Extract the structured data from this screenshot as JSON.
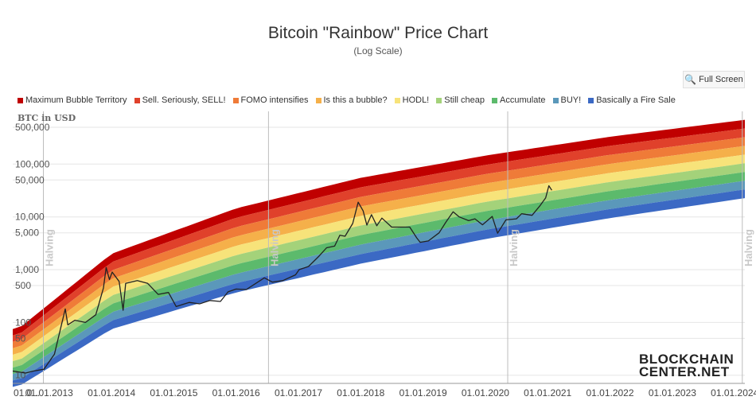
{
  "title": "Bitcoin \"Rainbow\" Price Chart",
  "subtitle": "(Log Scale)",
  "fullscreen_label": "Full Screen",
  "logo": {
    "line1": "BLOCKCHAIN",
    "line2": "CENTER.NET"
  },
  "chart_data": {
    "type": "area",
    "title": "Bitcoin \"Rainbow\" Price Chart",
    "subtitle": "(Log Scale)",
    "ylabel": "BTC in USD",
    "y_scale": "log",
    "ylim": [
      7,
      1000000
    ],
    "xlim": [
      "2012-06-01",
      "2024-03-01"
    ],
    "y_ticks": [
      {
        "value": 500000,
        "label": "500,000"
      },
      {
        "value": 100000,
        "label": "100,000"
      },
      {
        "value": 50000,
        "label": "50,000"
      },
      {
        "value": 10000,
        "label": "10,000"
      },
      {
        "value": 5000,
        "label": "5,000"
      },
      {
        "value": 1000,
        "label": "1,000"
      },
      {
        "value": 500,
        "label": "500"
      },
      {
        "value": 100,
        "label": "100"
      },
      {
        "value": 50,
        "label": "50"
      },
      {
        "value": 10,
        "label": "10"
      }
    ],
    "x_ticks": [
      {
        "date": "2012-07-01",
        "label": "01.0..."
      },
      {
        "date": "2013-01-01",
        "label": "01.01.2013"
      },
      {
        "date": "2014-01-01",
        "label": "01.01.2014"
      },
      {
        "date": "2015-01-01",
        "label": "01.01.2015"
      },
      {
        "date": "2016-01-01",
        "label": "01.01.2016"
      },
      {
        "date": "2017-01-01",
        "label": "01.01.2017"
      },
      {
        "date": "2018-01-01",
        "label": "01.01.2018"
      },
      {
        "date": "2019-01-01",
        "label": "01.01.2019"
      },
      {
        "date": "2020-01-01",
        "label": "01.01.2020"
      },
      {
        "date": "2021-01-01",
        "label": "01.01.2021"
      },
      {
        "date": "2022-01-01",
        "label": "01.01.2022"
      },
      {
        "date": "2023-01-01",
        "label": "01.01.2023"
      },
      {
        "date": "2024-01-01",
        "label": "01.01.2024"
      }
    ],
    "halvings": [
      {
        "date": "2012-11-28",
        "label": "Halving"
      },
      {
        "date": "2016-07-09",
        "label": "Halving"
      },
      {
        "date": "2020-05-11",
        "label": "Halving"
      },
      {
        "date": "2024-02-15",
        "label": "Halving"
      }
    ],
    "bands": [
      {
        "name": "Maximum Bubble Territory",
        "color": "#c00000",
        "lower": [
          [
            2012.5,
            40
          ],
          [
            2014.0,
            1100
          ],
          [
            2016.0,
            8000
          ],
          [
            2018.0,
            30000
          ],
          [
            2020.0,
            80000
          ],
          [
            2022.0,
            180000
          ],
          [
            2024.2,
            380000
          ]
        ],
        "upper": [
          [
            2012.5,
            75
          ],
          [
            2014.0,
            2000
          ],
          [
            2016.0,
            14500
          ],
          [
            2018.0,
            55000
          ],
          [
            2020.0,
            145000
          ],
          [
            2022.0,
            330000
          ],
          [
            2024.2,
            700000
          ]
        ]
      },
      {
        "name": "Sell. Seriously, SELL!",
        "color": "#e0412b"
      },
      {
        "name": "FOMO intensifies",
        "color": "#ef7b38"
      },
      {
        "name": "Is this a bubble?",
        "color": "#f5b04a"
      },
      {
        "name": "HODL!",
        "color": "#f7e37a"
      },
      {
        "name": "Still cheap",
        "color": "#a4d27a"
      },
      {
        "name": "Accumulate",
        "color": "#5cba6c"
      },
      {
        "name": "BUY!",
        "color": "#5b98ba"
      },
      {
        "name": "Basically a Fire Sale",
        "color": "#3b69c4",
        "lower": [
          [
            2012.5,
            6
          ],
          [
            2014.0,
            75
          ],
          [
            2016.0,
            370
          ],
          [
            2018.0,
            1300
          ],
          [
            2020.0,
            3800
          ],
          [
            2022.0,
            9500
          ],
          [
            2024.2,
            23000
          ]
        ],
        "upper": [
          [
            2012.5,
            10
          ],
          [
            2014.0,
            130
          ],
          [
            2016.0,
            680
          ],
          [
            2018.0,
            2300
          ],
          [
            2020.0,
            6800
          ],
          [
            2022.0,
            17000
          ],
          [
            2024.2,
            42000
          ]
        ]
      }
    ],
    "price_series": {
      "name": "BTC price",
      "color": "#222222",
      "points": [
        [
          "2012-06-01",
          12
        ],
        [
          "2012-08-15",
          11
        ],
        [
          "2012-10-01",
          12
        ],
        [
          "2012-12-01",
          13
        ],
        [
          "2013-02-01",
          25
        ],
        [
          "2013-04-05",
          180
        ],
        [
          "2013-04-20",
          90
        ],
        [
          "2013-06-01",
          110
        ],
        [
          "2013-08-01",
          100
        ],
        [
          "2013-10-01",
          140
        ],
        [
          "2013-11-15",
          450
        ],
        [
          "2013-12-01",
          1100
        ],
        [
          "2013-12-20",
          650
        ],
        [
          "2014-01-05",
          900
        ],
        [
          "2014-02-15",
          600
        ],
        [
          "2014-03-10",
          170
        ],
        [
          "2014-03-25",
          550
        ],
        [
          "2014-06-01",
          620
        ],
        [
          "2014-08-01",
          550
        ],
        [
          "2014-10-01",
          340
        ],
        [
          "2014-12-01",
          370
        ],
        [
          "2015-01-15",
          200
        ],
        [
          "2015-04-01",
          240
        ],
        [
          "2015-06-01",
          225
        ],
        [
          "2015-08-01",
          260
        ],
        [
          "2015-10-01",
          250
        ],
        [
          "2015-11-15",
          380
        ],
        [
          "2016-01-01",
          430
        ],
        [
          "2016-03-01",
          420
        ],
        [
          "2016-06-15",
          700
        ],
        [
          "2016-08-01",
          580
        ],
        [
          "2016-10-01",
          620
        ],
        [
          "2016-12-15",
          800
        ],
        [
          "2017-01-05",
          1000
        ],
        [
          "2017-03-01",
          1150
        ],
        [
          "2017-05-01",
          1800
        ],
        [
          "2017-06-15",
          2600
        ],
        [
          "2017-08-01",
          2800
        ],
        [
          "2017-09-01",
          4500
        ],
        [
          "2017-10-01",
          4300
        ],
        [
          "2017-11-15",
          7500
        ],
        [
          "2017-12-17",
          19000
        ],
        [
          "2018-01-15",
          13000
        ],
        [
          "2018-02-06",
          7000
        ],
        [
          "2018-03-05",
          11000
        ],
        [
          "2018-04-05",
          6800
        ],
        [
          "2018-05-05",
          9500
        ],
        [
          "2018-07-01",
          6400
        ],
        [
          "2018-08-15",
          6400
        ],
        [
          "2018-10-15",
          6400
        ],
        [
          "2018-11-25",
          4000
        ],
        [
          "2018-12-15",
          3300
        ],
        [
          "2019-02-01",
          3500
        ],
        [
          "2019-04-05",
          5000
        ],
        [
          "2019-05-15",
          8000
        ],
        [
          "2019-06-26",
          12500
        ],
        [
          "2019-08-01",
          10000
        ],
        [
          "2019-09-25",
          8500
        ],
        [
          "2019-11-01",
          9200
        ],
        [
          "2019-12-15",
          7100
        ],
        [
          "2020-02-10",
          10200
        ],
        [
          "2020-03-13",
          4900
        ],
        [
          "2020-05-01",
          8800
        ],
        [
          "2020-07-01",
          9200
        ],
        [
          "2020-08-01",
          11500
        ],
        [
          "2020-10-01",
          10700
        ],
        [
          "2020-11-15",
          16000
        ],
        [
          "2020-12-20",
          23000
        ],
        [
          "2021-01-08",
          39000
        ],
        [
          "2021-01-25",
          32000
        ]
      ]
    }
  }
}
